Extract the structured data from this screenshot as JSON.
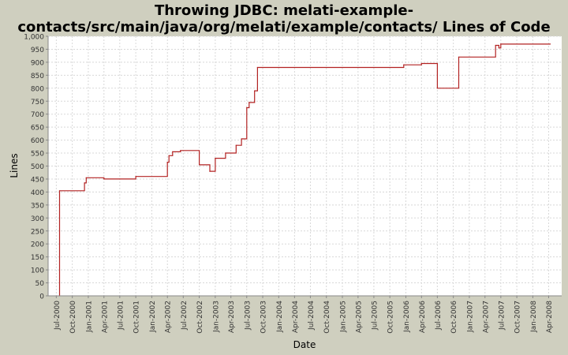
{
  "chart_data": {
    "type": "line",
    "title_lines": [
      "Throwing JDBC: melati-example-",
      "contacts/src/main/java/org/melati/example/contacts/ Lines of Code"
    ],
    "xlabel": "Date",
    "ylabel": "Lines",
    "x_ticks": [
      "Jul-2000",
      "Oct-2000",
      "Jan-2001",
      "Apr-2001",
      "Jul-2001",
      "Oct-2001",
      "Jan-2002",
      "Apr-2002",
      "Jul-2002",
      "Oct-2002",
      "Jan-2003",
      "Apr-2003",
      "Jul-2003",
      "Oct-2003",
      "Jan-2004",
      "Apr-2004",
      "Jul-2004",
      "Oct-2004",
      "Jan-2005",
      "Apr-2005",
      "Jul-2005",
      "Oct-2005",
      "Jan-2006",
      "Apr-2006",
      "Jul-2006",
      "Oct-2006",
      "Jan-2007",
      "Apr-2007",
      "Jul-2007",
      "Oct-2007",
      "Jan-2008",
      "Apr-2008"
    ],
    "y_ticks": [
      "0",
      "50",
      "100",
      "150",
      "200",
      "250",
      "300",
      "350",
      "400",
      "450",
      "500",
      "550",
      "600",
      "650",
      "700",
      "750",
      "800",
      "850",
      "900",
      "950",
      "1,000"
    ],
    "ylim": [
      0,
      1000
    ],
    "xlim": [
      "2000-05-15",
      "2008-06-15"
    ],
    "grid": true,
    "series": [
      {
        "color": "#b22222",
        "step": true,
        "points": [
          [
            "2000-07-20",
            0
          ],
          [
            "2000-07-20",
            405
          ],
          [
            "2000-12-10",
            435
          ],
          [
            "2000-12-20",
            455
          ],
          [
            "2001-04-01",
            450
          ],
          [
            "2001-10-01",
            460
          ],
          [
            "2002-04-01",
            515
          ],
          [
            "2002-04-10",
            540
          ],
          [
            "2002-05-01",
            555
          ],
          [
            "2002-06-15",
            560
          ],
          [
            "2002-10-01",
            505
          ],
          [
            "2002-12-01",
            480
          ],
          [
            "2003-01-01",
            530
          ],
          [
            "2003-03-01",
            550
          ],
          [
            "2003-05-01",
            580
          ],
          [
            "2003-06-01",
            605
          ],
          [
            "2003-07-01",
            725
          ],
          [
            "2003-07-15",
            745
          ],
          [
            "2003-08-15",
            790
          ],
          [
            "2003-09-01",
            880
          ],
          [
            "2005-12-20",
            890
          ],
          [
            "2006-04-01",
            895
          ],
          [
            "2006-07-01",
            800
          ],
          [
            "2006-11-01",
            920
          ],
          [
            "2007-06-01",
            965
          ],
          [
            "2007-06-20",
            955
          ],
          [
            "2007-07-01",
            970
          ],
          [
            "2008-04-10",
            970
          ]
        ]
      }
    ]
  }
}
